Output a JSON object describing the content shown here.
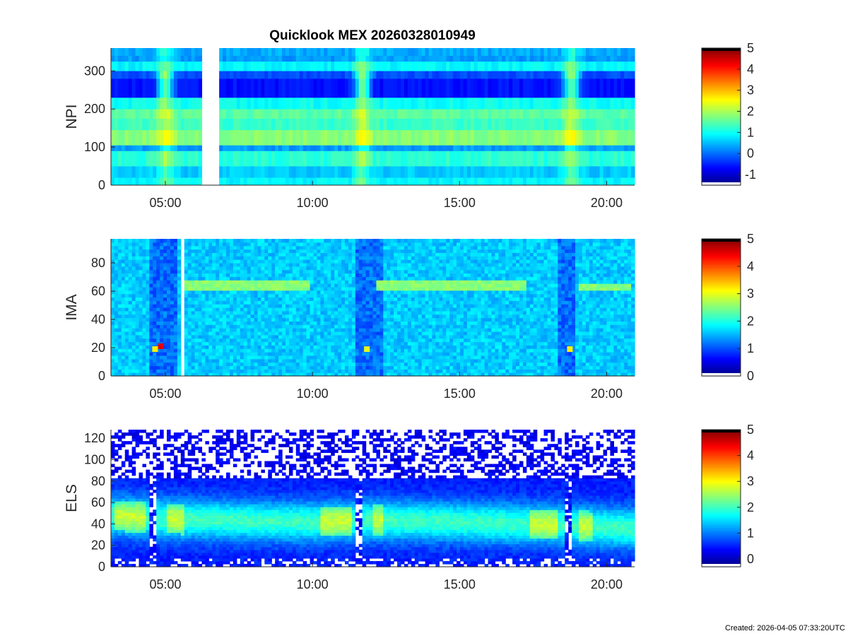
{
  "figure_title": "Quicklook MEX 20260328010949",
  "footer": "Created: 2026-04-05 07:33:20UTC",
  "chart_data": [
    {
      "type": "heatmap",
      "ylabel": "NPI",
      "x_tick_labels": [
        "05:00",
        "10:00",
        "15:00",
        "20:00"
      ],
      "x_tick_hours": [
        5,
        10,
        15,
        20
      ],
      "xlim_hours": [
        3.15,
        20.95
      ],
      "ylim": [
        0,
        360
      ],
      "y_ticks": [
        0,
        100,
        200,
        300
      ],
      "colorbar": {
        "range": [
          -1.5,
          5
        ],
        "ticks": [
          -1,
          0,
          1,
          2,
          3,
          4,
          5
        ]
      },
      "data_gaps_hours": [
        [
          6.25,
          6.8
        ]
      ],
      "bands": [
        {
          "y": [
            0,
            20
          ],
          "level": 0.9
        },
        {
          "y": [
            20,
            50
          ],
          "level": 0.6
        },
        {
          "y": [
            50,
            90
          ],
          "level": 1.2
        },
        {
          "y": [
            90,
            105
          ],
          "level": 0.3
        },
        {
          "y": [
            105,
            145
          ],
          "level": 1.8
        },
        {
          "y": [
            145,
            175
          ],
          "level": 1.3
        },
        {
          "y": [
            175,
            200
          ],
          "level": 1.5
        },
        {
          "y": [
            200,
            230
          ],
          "level": 1.0
        },
        {
          "y": [
            230,
            280
          ],
          "level": -0.6
        },
        {
          "y": [
            280,
            300
          ],
          "level": -0.2
        },
        {
          "y": [
            300,
            325
          ],
          "level": 0.9
        },
        {
          "y": [
            325,
            340
          ],
          "level": 0.3
        },
        {
          "y": [
            340,
            360
          ],
          "level": 0.4
        }
      ],
      "events_hours": [
        5.0,
        11.7,
        18.8
      ]
    },
    {
      "type": "heatmap",
      "ylabel": "IMA",
      "x_tick_labels": [
        "05:00",
        "10:00",
        "15:00",
        "20:00"
      ],
      "x_tick_hours": [
        5,
        10,
        15,
        20
      ],
      "xlim_hours": [
        3.15,
        20.95
      ],
      "ylim": [
        0,
        97
      ],
      "y_ticks": [
        0,
        20,
        40,
        60,
        80
      ],
      "colorbar": {
        "range": [
          0,
          5
        ],
        "ticks": [
          0,
          1,
          2,
          3,
          4,
          5
        ]
      },
      "data_gaps_hours": [
        [
          4.4,
          4.5
        ],
        [
          5.5,
          5.6
        ]
      ],
      "ion_line_segments": [
        {
          "hours": [
            5.6,
            9.9
          ],
          "y": [
            62,
            68
          ]
        },
        {
          "hours": [
            12.2,
            17.3
          ],
          "y": [
            62,
            68
          ]
        },
        {
          "hours": [
            19.0,
            20.8
          ],
          "y": [
            62,
            64
          ]
        }
      ],
      "dense_regions_hours": [
        [
          4.4,
          5.4
        ],
        [
          11.4,
          12.4
        ],
        [
          18.3,
          18.9
        ]
      ],
      "hot_spots": [
        {
          "hour": 4.85,
          "y": 21,
          "level": 4.5
        },
        {
          "hour": 4.65,
          "y": 19,
          "level": 3.2
        },
        {
          "hour": 11.85,
          "y": 19,
          "level": 3.0
        },
        {
          "hour": 18.75,
          "y": 19,
          "level": 3.2
        }
      ]
    },
    {
      "type": "heatmap",
      "ylabel": "ELS",
      "x_tick_labels": [
        "05:00",
        "10:00",
        "15:00",
        "20:00"
      ],
      "x_tick_hours": [
        5,
        10,
        15,
        20
      ],
      "xlim_hours": [
        3.15,
        20.95
      ],
      "ylim": [
        0,
        128
      ],
      "y_ticks": [
        0,
        20,
        40,
        60,
        80,
        100,
        120
      ],
      "colorbar": {
        "range": [
          -0.3,
          5
        ],
        "ticks": [
          0,
          1,
          2,
          3,
          4,
          5
        ]
      },
      "core_center": [
        {
          "hour": 3.2,
          "y": 48
        },
        {
          "hour": 5.0,
          "y": 45
        },
        {
          "hour": 10.0,
          "y": 42
        },
        {
          "hour": 12.0,
          "y": 44
        },
        {
          "hour": 18.0,
          "y": 40
        },
        {
          "hour": 20.9,
          "y": 36
        }
      ],
      "dropouts_hours": [
        [
          4.5,
          4.75
        ],
        [
          11.5,
          11.7
        ],
        [
          18.6,
          18.8
        ]
      ],
      "hot_regions_hours": [
        [
          3.3,
          4.3
        ],
        [
          5.1,
          5.6
        ],
        [
          10.3,
          11.3
        ],
        [
          12.0,
          12.4
        ],
        [
          17.4,
          18.3
        ],
        [
          19.1,
          19.5
        ]
      ]
    }
  ]
}
